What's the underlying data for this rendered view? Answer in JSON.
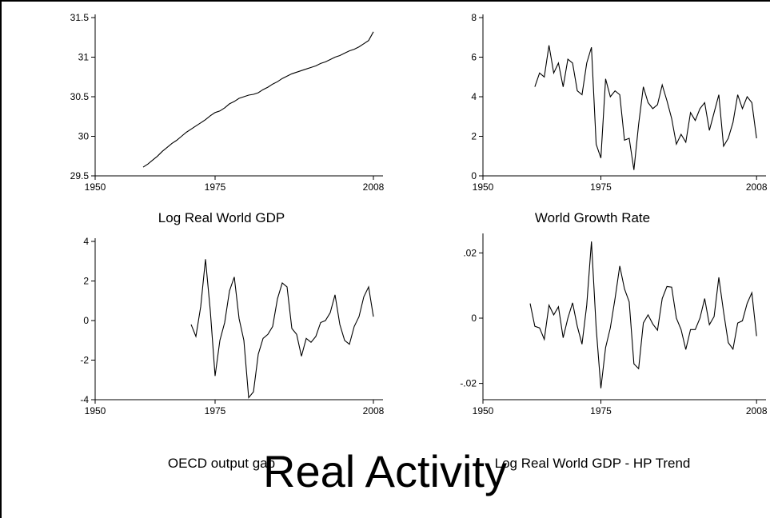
{
  "title": "Real Activity",
  "chart_data": [
    {
      "type": "line",
      "title": "Log Real World GDP",
      "xlim": [
        1950,
        2010
      ],
      "ylim": [
        29.5,
        31.5
      ],
      "xticks": [
        1950,
        1975,
        2008
      ],
      "yticks": [
        29.5,
        30,
        30.5,
        31,
        31.5
      ],
      "ytick_labels": [
        "29.5",
        "30",
        "30.5",
        "31",
        "31.5"
      ],
      "series": [
        {
          "x": [
            1960,
            1961,
            1962,
            1963,
            1964,
            1965,
            1966,
            1967,
            1968,
            1969,
            1970,
            1971,
            1972,
            1973,
            1974,
            1975,
            1976,
            1977,
            1978,
            1979,
            1980,
            1981,
            1982,
            1983,
            1984,
            1985,
            1986,
            1987,
            1988,
            1989,
            1990,
            1991,
            1992,
            1993,
            1994,
            1995,
            1996,
            1997,
            1998,
            1999,
            2000,
            2001,
            2002,
            2003,
            2004,
            2005,
            2006,
            2007,
            2008
          ],
          "values": [
            29.61,
            29.65,
            29.7,
            29.75,
            29.81,
            29.86,
            29.91,
            29.95,
            30.0,
            30.05,
            30.09,
            30.13,
            30.17,
            30.21,
            30.26,
            30.3,
            30.32,
            30.36,
            30.41,
            30.44,
            30.48,
            30.5,
            30.52,
            30.53,
            30.55,
            30.59,
            30.62,
            30.66,
            30.69,
            30.73,
            30.76,
            30.79,
            30.81,
            30.83,
            30.85,
            30.87,
            30.89,
            30.92,
            30.94,
            30.97,
            31.0,
            31.02,
            31.05,
            31.08,
            31.1,
            31.13,
            31.17,
            31.21,
            31.32
          ]
        }
      ]
    },
    {
      "type": "line",
      "title": "World Growth Rate",
      "xlim": [
        1950,
        2010
      ],
      "ylim": [
        0,
        8
      ],
      "xticks": [
        1950,
        1975,
        2008
      ],
      "yticks": [
        0,
        2,
        4,
        6,
        8
      ],
      "ytick_labels": [
        "0",
        "2",
        "4",
        "6",
        "8"
      ],
      "series": [
        {
          "x": [
            1961,
            1962,
            1963,
            1964,
            1965,
            1966,
            1967,
            1968,
            1969,
            1970,
            1971,
            1972,
            1973,
            1974,
            1975,
            1976,
            1977,
            1978,
            1979,
            1980,
            1981,
            1982,
            1983,
            1984,
            1985,
            1986,
            1987,
            1988,
            1989,
            1990,
            1991,
            1992,
            1993,
            1994,
            1995,
            1996,
            1997,
            1998,
            1999,
            2000,
            2001,
            2002,
            2003,
            2004,
            2005,
            2006,
            2007,
            2008
          ],
          "values": [
            4.5,
            5.2,
            5.0,
            6.6,
            5.2,
            5.7,
            4.5,
            5.9,
            5.7,
            4.3,
            4.1,
            5.7,
            6.5,
            1.6,
            0.9,
            4.9,
            4.0,
            4.3,
            4.1,
            1.8,
            1.9,
            0.3,
            2.6,
            4.5,
            3.7,
            3.4,
            3.6,
            4.6,
            3.8,
            2.9,
            1.6,
            2.1,
            1.7,
            3.2,
            2.8,
            3.4,
            3.7,
            2.3,
            3.2,
            4.1,
            1.5,
            1.9,
            2.7,
            4.1,
            3.4,
            4.0,
            3.7,
            1.9
          ]
        }
      ]
    },
    {
      "type": "line",
      "title": "OECD output gap",
      "xlim": [
        1950,
        2010
      ],
      "ylim": [
        -4,
        4
      ],
      "xticks": [
        1950,
        1975,
        2008
      ],
      "yticks": [
        -4,
        -2,
        0,
        2,
        4
      ],
      "ytick_labels": [
        "-4",
        "-2",
        "0",
        "2",
        "4"
      ],
      "series": [
        {
          "x": [
            1970,
            1971,
            1972,
            1973,
            1974,
            1975,
            1976,
            1977,
            1978,
            1979,
            1980,
            1981,
            1982,
            1983,
            1984,
            1985,
            1986,
            1987,
            1988,
            1989,
            1990,
            1991,
            1992,
            1993,
            1994,
            1995,
            1996,
            1997,
            1998,
            1999,
            2000,
            2001,
            2002,
            2003,
            2004,
            2005,
            2006,
            2007,
            2008
          ],
          "values": [
            -0.2,
            -0.8,
            0.7,
            3.1,
            0.5,
            -2.8,
            -1.0,
            -0.1,
            1.5,
            2.2,
            0.1,
            -1.0,
            -3.9,
            -3.6,
            -1.7,
            -0.9,
            -0.7,
            -0.3,
            1.1,
            1.9,
            1.7,
            -0.4,
            -0.7,
            -1.8,
            -0.9,
            -1.1,
            -0.8,
            -0.1,
            0.0,
            0.4,
            1.3,
            -0.2,
            -1.0,
            -1.2,
            -0.3,
            0.2,
            1.2,
            1.7,
            0.2
          ]
        }
      ]
    },
    {
      "type": "line",
      "title": "Log Real World GDP - HP Trend",
      "xlim": [
        1950,
        2010
      ],
      "ylim": [
        -0.025,
        0.025
      ],
      "xticks": [
        1950,
        1975,
        2008
      ],
      "yticks": [
        -0.02,
        0,
        0.02
      ],
      "ytick_labels": [
        "-.02",
        "0",
        ".02"
      ],
      "series": [
        {
          "x": [
            1960,
            1961,
            1962,
            1963,
            1964,
            1965,
            1966,
            1967,
            1968,
            1969,
            1970,
            1971,
            1972,
            1973,
            1974,
            1975,
            1976,
            1977,
            1978,
            1979,
            1980,
            1981,
            1982,
            1983,
            1984,
            1985,
            1986,
            1987,
            1988,
            1989,
            1990,
            1991,
            1992,
            1993,
            1994,
            1995,
            1996,
            1997,
            1998,
            1999,
            2000,
            2001,
            2002,
            2003,
            2004,
            2005,
            2006,
            2007,
            2008
          ],
          "values": [
            0.0045,
            -0.0025,
            -0.003,
            -0.0065,
            0.004,
            0.001,
            0.0035,
            -0.006,
            0.0,
            0.0047,
            -0.0025,
            -0.008,
            0.004,
            0.0235,
            -0.003,
            -0.0215,
            -0.009,
            -0.003,
            0.006,
            0.016,
            0.009,
            0.005,
            -0.014,
            -0.0155,
            -0.0015,
            0.001,
            -0.0018,
            -0.0037,
            0.006,
            0.0097,
            0.0095,
            0.0,
            -0.0035,
            -0.0096,
            -0.0035,
            -0.0035,
            0.0,
            0.006,
            -0.002,
            0.0005,
            0.0125,
            0.002,
            -0.0075,
            -0.0095,
            -0.0015,
            -0.0008,
            0.0045,
            0.0078,
            -0.0055
          ]
        }
      ]
    }
  ]
}
